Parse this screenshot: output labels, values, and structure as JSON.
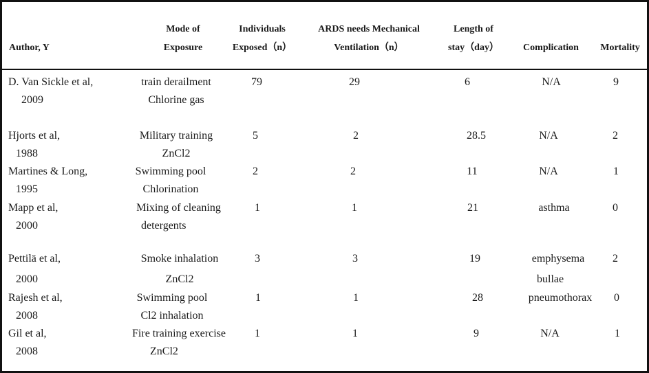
{
  "headers": {
    "author": "Author, Y",
    "mode_line1": "Mode of",
    "mode_line2": "Exposure",
    "individuals_line1": "Individuals",
    "individuals_line2": "Exposed（n）",
    "ards_line1": "ARDS needs Mechanical",
    "ards_line2": "Ventilation（n）",
    "length_line1": "Length of",
    "length_line2": "stay（day）",
    "complication": "Complication",
    "mortality": "Mortality"
  },
  "rows": [
    {
      "author1": "D. Van Sickle et al,",
      "author2": "2009",
      "mode1": "train derailment",
      "mode2": "Chlorine gas",
      "individuals": "79",
      "ards": "29",
      "length": "6",
      "complication1": "N/A",
      "complication2": "",
      "mortality": "9"
    },
    {
      "author1": "Hjorts et al,",
      "author2": "1988",
      "mode1": "Military training",
      "mode2": "ZnCl2",
      "individuals": "5",
      "ards": "2",
      "length": "28.5",
      "complication1": "N/A",
      "complication2": "",
      "mortality": "2"
    },
    {
      "author1": "Martines & Long,",
      "author2": "1995",
      "mode1": "Swimming pool",
      "mode2": "Chlorination",
      "individuals": "2",
      "ards": "2",
      "length": "11",
      "complication1": "N/A",
      "complication2": "",
      "mortality": "1"
    },
    {
      "author1": "Mapp et al,",
      "author2": "2000",
      "mode1": "Mixing of cleaning",
      "mode2": "detergents",
      "individuals": "1",
      "ards": "1",
      "length": "21",
      "complication1": "asthma",
      "complication2": "",
      "mortality": "0"
    },
    {
      "author1": "Pettilä et al,",
      "author2": "2000",
      "mode1": "Smoke inhalation",
      "mode2": "ZnCl2",
      "individuals": "3",
      "ards": "3",
      "length": "19",
      "complication1": "emphysema",
      "complication2": "bullae",
      "mortality": "2"
    },
    {
      "author1": "Rajesh et al,",
      "author2": "2008",
      "mode1": "Swimming pool",
      "mode2": "Cl2 inhalation",
      "individuals": "1",
      "ards": "1",
      "length": "28",
      "complication1": "pneumothorax",
      "complication2": "",
      "mortality": "0"
    },
    {
      "author1": "Gil et al,",
      "author2": "2008",
      "mode1": "Fire training exercise",
      "mode2": "ZnCl2",
      "individuals": "1",
      "ards": "1",
      "length": "9",
      "complication1": "N/A",
      "complication2": "",
      "mortality": "1"
    }
  ]
}
